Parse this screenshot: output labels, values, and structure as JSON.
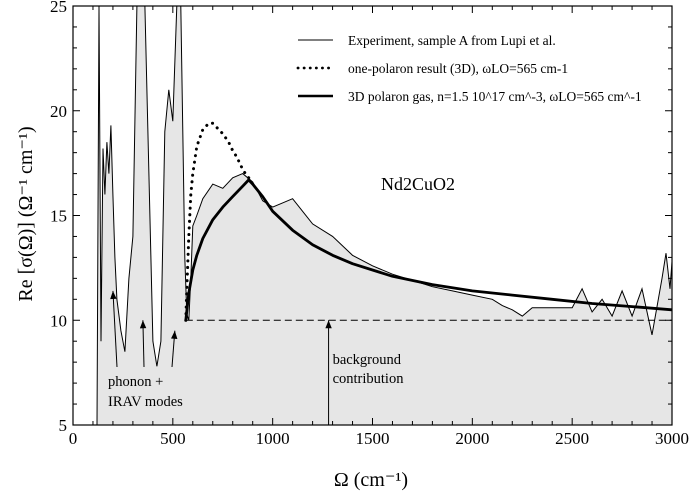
{
  "chart_data": {
    "type": "line",
    "xlabel": "Ω (cm⁻¹)",
    "ylabel": "Re [σ(Ω)] (Ω⁻¹ cm⁻¹)",
    "xlim": [
      0,
      3000
    ],
    "ylim": [
      5,
      25
    ],
    "xticks": [
      0,
      500,
      1000,
      1500,
      2000,
      2500,
      3000
    ],
    "yticks": [
      5,
      10,
      15,
      20,
      25
    ],
    "grid": false,
    "legend_position": "top-right",
    "inset_label": "Nd2CuO2",
    "series": [
      {
        "name": "Experiment, sample A from Lupi et al.",
        "style": "thin-solid",
        "x": [
          120,
          130,
          140,
          150,
          160,
          170,
          180,
          190,
          200,
          210,
          220,
          240,
          260,
          280,
          300,
          320,
          340,
          360,
          380,
          400,
          420,
          440,
          460,
          480,
          500,
          520,
          540,
          560,
          570,
          580,
          590,
          600,
          620,
          650,
          700,
          750,
          800,
          850,
          900,
          950,
          1000,
          1050,
          1100,
          1150,
          1200,
          1300,
          1400,
          1500,
          1600,
          1700,
          1800,
          1900,
          2000,
          2100,
          2150,
          2200,
          2250,
          2300,
          2350,
          2400,
          2450,
          2500,
          2550,
          2600,
          2650,
          2700,
          2750,
          2800,
          2850,
          2900,
          2950,
          2970,
          2990,
          3000
        ],
        "y": [
          5.0,
          25.0,
          9.0,
          18.2,
          16.0,
          18.5,
          17.0,
          19.3,
          16.0,
          13.0,
          11.0,
          9.5,
          8.5,
          12.0,
          14.0,
          25.0,
          25.0,
          25.0,
          17.0,
          9.0,
          7.8,
          9.0,
          19.0,
          21.0,
          19.5,
          25.0,
          25.0,
          13.0,
          10.3,
          10.0,
          12.0,
          14.5,
          15.0,
          15.8,
          16.5,
          16.3,
          16.8,
          17.0,
          16.6,
          15.7,
          15.4,
          15.6,
          15.8,
          15.2,
          14.6,
          14.0,
          13.1,
          12.6,
          12.2,
          11.9,
          11.6,
          11.4,
          11.2,
          11.0,
          10.7,
          10.5,
          10.2,
          10.6,
          10.6,
          10.6,
          10.6,
          10.6,
          11.5,
          10.4,
          11.0,
          10.2,
          11.4,
          10.2,
          11.5,
          9.3,
          12.0,
          13.2,
          11.5,
          12.8
        ]
      },
      {
        "name": "one-polaron result (3D), ωLO=565 cm-1",
        "style": "dotted",
        "x": [
          565,
          570,
          580,
          590,
          600,
          620,
          650,
          680,
          700,
          720,
          750,
          780,
          800,
          820,
          850,
          870,
          880
        ],
        "y": [
          10.0,
          11.5,
          14.0,
          16.0,
          17.0,
          18.3,
          19.1,
          19.4,
          19.4,
          19.2,
          18.9,
          18.5,
          18.1,
          17.8,
          17.2,
          16.9,
          16.8
        ]
      },
      {
        "name": "3D polaron gas, n=1.5 10^17 cm^-3, ωLO=565 cm^-1",
        "style": "thick-solid",
        "x": [
          565,
          580,
          600,
          620,
          650,
          700,
          750,
          800,
          850,
          880,
          900,
          950,
          1000,
          1100,
          1200,
          1300,
          1400,
          1500,
          1600,
          1800,
          2000,
          2200,
          2400,
          2600,
          2800,
          3000
        ],
        "y": [
          10.0,
          11.3,
          12.4,
          13.1,
          13.9,
          14.8,
          15.4,
          15.9,
          16.4,
          16.7,
          16.5,
          15.9,
          15.2,
          14.3,
          13.6,
          13.1,
          12.7,
          12.4,
          12.1,
          11.7,
          11.4,
          11.2,
          11.0,
          10.8,
          10.65,
          10.5
        ]
      },
      {
        "name": "background",
        "style": "dashed",
        "x": [
          565,
          3000
        ],
        "y": [
          10.0,
          10.0
        ]
      }
    ],
    "annotations": [
      {
        "lines": [
          "phonon +",
          "IRAV modes"
        ],
        "arrows_to": [
          [
            200,
            11.4
          ],
          [
            350,
            10.0
          ],
          [
            510,
            9.5
          ]
        ]
      },
      {
        "lines": [
          "background",
          "contribution"
        ],
        "arrow_to": [
          1280,
          10.0
        ]
      }
    ]
  }
}
